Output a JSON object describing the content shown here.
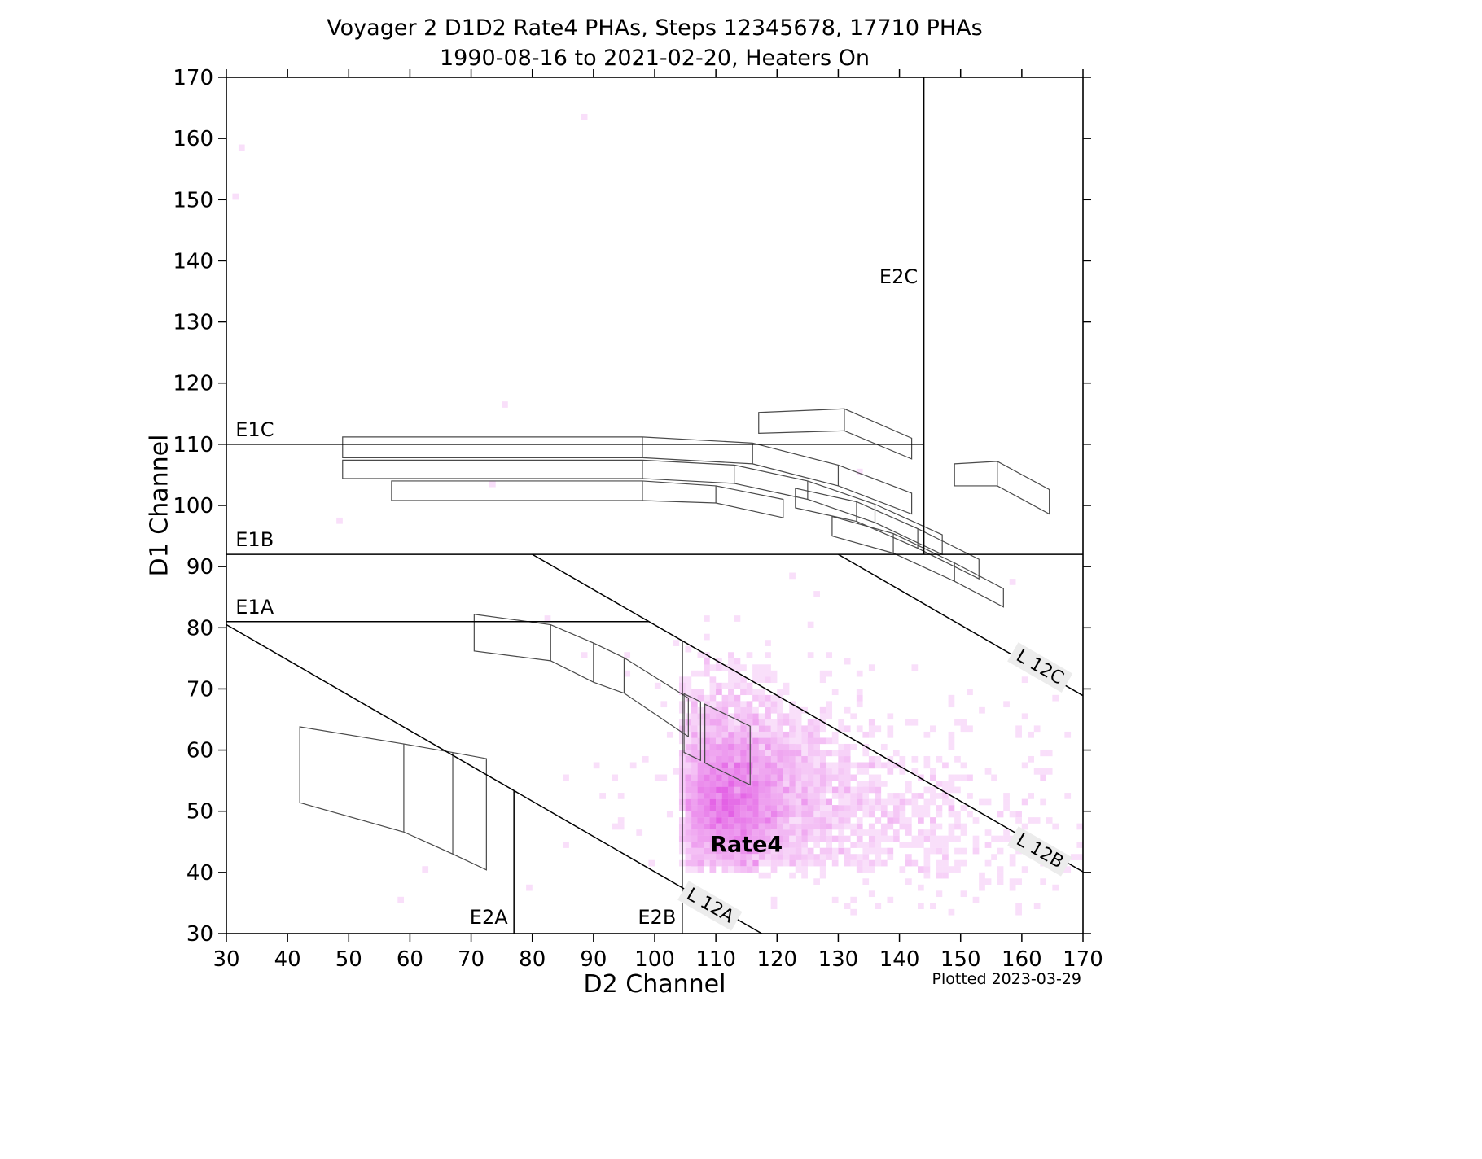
{
  "title": {
    "line1": "Voyager 2 D1D2 Rate4 PHAs, Steps 12345678, 17710 PHAs",
    "line2": "1990-08-16 to 2021-02-20, Heaters On"
  },
  "footer": {
    "plotted": "Plotted 2023-03-29"
  },
  "axes": {
    "xlabel": "D2 Channel",
    "ylabel": "D1 Channel",
    "xmin": 30,
    "xmax": 170,
    "ymin": 30,
    "ymax": 170,
    "tick_step": 10
  },
  "chart_data": {
    "type": "heatmap",
    "title": "Voyager 2 D1D2 Rate4 PHAs, Steps 12345678, 17710 PHAs",
    "subtitle": "1990-08-16 to 2021-02-20, Heaters On",
    "xlabel": "D2 Channel",
    "ylabel": "D1 Channel",
    "xlim": [
      30,
      170
    ],
    "ylim": [
      30,
      170
    ],
    "xticks": [
      30,
      40,
      50,
      60,
      70,
      80,
      90,
      100,
      110,
      120,
      130,
      140,
      150,
      160,
      170
    ],
    "yticks": [
      30,
      40,
      50,
      60,
      70,
      80,
      90,
      100,
      110,
      120,
      130,
      140,
      150,
      160,
      170
    ],
    "total_phas": 17710,
    "heat_color_max": "#e361e5",
    "heatmap": {
      "cell_size": 1,
      "seed": 42,
      "clusters": [
        {
          "n": 2600,
          "cx": 112,
          "cy": 51,
          "sx": 4.5,
          "sy": 6.0,
          "clip": {
            "xmin": 104.5,
            "ymin": 40.5
          }
        },
        {
          "n": 1400,
          "cx": 116,
          "cy": 55,
          "sx": 7.0,
          "sy": 7.0,
          "clip": {
            "xmin": 104.5,
            "ymin": 40.5
          }
        },
        {
          "n": 900,
          "cx": 122,
          "cy": 49,
          "sx": 14.0,
          "sy": 7.0,
          "clip": {
            "xmin": 104.5,
            "ymin": 40.5
          }
        },
        {
          "n": 350,
          "cx": 140,
          "cy": 48,
          "sx": 16.0,
          "sy": 7.0,
          "clip": {
            "xmin": 104.5,
            "ymin": 33
          }
        },
        {
          "n": 300,
          "cx": 111,
          "cy": 66,
          "sx": 5.0,
          "sy": 5.0,
          "clip": {
            "xmin": 104.5,
            "ymin": 40.5
          }
        },
        {
          "n": 160,
          "cx": 128,
          "cy": 58,
          "sx": 22.0,
          "sy": 12.0,
          "clip": {
            "xmin": 104.5,
            "ymin": 33
          }
        },
        {
          "n": 30,
          "cx": 98,
          "cy": 55,
          "sx": 10.0,
          "sy": 13.0,
          "clip": {
            "xmax": 104.5
          }
        }
      ],
      "outliers": [
        [
          32,
          158
        ],
        [
          31,
          150
        ],
        [
          88,
          163
        ],
        [
          75,
          116
        ],
        [
          48,
          97
        ],
        [
          88,
          75
        ],
        [
          62,
          40
        ],
        [
          73,
          103
        ],
        [
          95,
          75
        ],
        [
          90,
          57
        ],
        [
          97,
          46
        ],
        [
          85,
          44
        ],
        [
          100,
          70
        ],
        [
          102,
          62
        ],
        [
          79,
          37
        ],
        [
          58,
          35
        ]
      ]
    },
    "threshold_lines": [
      {
        "id": "E1C",
        "label": "E1C",
        "orient": "h",
        "value": 110,
        "from": 30,
        "to": 144,
        "label_pos": [
          31.5,
          110.5
        ],
        "anchor": "lb"
      },
      {
        "id": "E1B",
        "label": "E1B",
        "orient": "h",
        "value": 92,
        "from": 30,
        "to": 170,
        "label_pos": [
          31.5,
          92.5
        ],
        "anchor": "lb"
      },
      {
        "id": "E1A",
        "label": "E1A",
        "orient": "h",
        "value": 81,
        "from": 30,
        "to": 99.1,
        "label_pos": [
          31.5,
          81.5
        ],
        "anchor": "lb"
      },
      {
        "id": "E2A",
        "label": "E2A",
        "orient": "v",
        "value": 77,
        "from": 30,
        "to": 53.4,
        "label_pos": [
          76,
          30.8
        ],
        "anchor": "rb"
      },
      {
        "id": "E2B",
        "label": "E2B",
        "orient": "v",
        "value": 104.5,
        "from": 30,
        "to": 77.9,
        "label_pos": [
          103.5,
          30.8
        ],
        "anchor": "rb"
      },
      {
        "id": "E2C",
        "label": "E2C",
        "orient": "v",
        "value": 144,
        "from": 92,
        "to": 170,
        "label_pos": [
          143,
          135.5
        ],
        "anchor": "rb"
      }
    ],
    "diagonal_lines": [
      {
        "id": "L12A",
        "label": "L 12A",
        "x1": 30,
        "y1": 80.5,
        "x2": 117.5,
        "y2": 30,
        "label_pos": [
          109,
          34.5
        ],
        "rotation": 30
      },
      {
        "id": "L12B",
        "label": "L 12B",
        "x1": 80,
        "y1": 92,
        "x2": 170,
        "y2": 40.1,
        "label_pos": [
          163,
          43.5
        ],
        "rotation": 30
      },
      {
        "id": "L12C",
        "label": "L 12C",
        "x1": 130,
        "y1": 92,
        "x2": 170,
        "y2": 68.9,
        "label_pos": [
          163,
          73.5
        ],
        "rotation": 30
      }
    ],
    "bands": [
      {
        "name": "band-upper-long-1",
        "outline": [
          [
            49,
            111.2
          ],
          [
            98,
            111.2
          ],
          [
            116,
            110.2
          ],
          [
            130,
            106.6
          ],
          [
            142,
            102.0
          ],
          [
            142,
            98.6
          ],
          [
            130,
            103.2
          ],
          [
            116,
            106.8
          ],
          [
            98,
            107.8
          ],
          [
            49,
            107.8
          ]
        ],
        "dividers": [
          [
            98,
            107.8,
            111.2
          ],
          [
            116,
            106.8,
            110.2
          ],
          [
            130,
            103.2,
            106.6
          ]
        ]
      },
      {
        "name": "band-upper-long-2",
        "outline": [
          [
            49,
            107.4
          ],
          [
            98,
            107.4
          ],
          [
            113,
            106.6
          ],
          [
            125,
            104.0
          ],
          [
            136,
            100.2
          ],
          [
            147,
            95.2
          ],
          [
            147,
            92.0
          ],
          [
            136,
            97.2
          ],
          [
            125,
            101.0
          ],
          [
            113,
            103.6
          ],
          [
            98,
            104.4
          ],
          [
            49,
            104.4
          ]
        ],
        "dividers": [
          [
            98,
            104.4,
            107.4
          ],
          [
            113,
            103.6,
            106.6
          ],
          [
            125,
            101.0,
            104.0
          ],
          [
            136,
            97.2,
            100.2
          ]
        ]
      },
      {
        "name": "band-upper-long-3",
        "outline": [
          [
            57,
            104.0
          ],
          [
            98,
            104.0
          ],
          [
            110,
            103.2
          ],
          [
            121,
            101.0
          ],
          [
            121,
            98.0
          ],
          [
            110,
            100.4
          ],
          [
            98,
            100.8
          ],
          [
            57,
            100.8
          ]
        ],
        "dividers": [
          [
            98,
            100.8,
            104.0
          ],
          [
            110,
            100.4,
            103.2
          ]
        ]
      },
      {
        "name": "band-top-right",
        "outline": [
          [
            117,
            115.2
          ],
          [
            131,
            115.8
          ],
          [
            142,
            111.0
          ],
          [
            142,
            107.6
          ],
          [
            131,
            112.2
          ],
          [
            117,
            111.8
          ]
        ],
        "dividers": [
          [
            131,
            112.2,
            115.8
          ]
        ]
      },
      {
        "name": "band-right-1",
        "outline": [
          [
            123,
            102.8
          ],
          [
            133,
            100.6
          ],
          [
            143,
            96.2
          ],
          [
            153,
            91.2
          ],
          [
            153,
            88.0
          ],
          [
            143,
            93.0
          ],
          [
            133,
            97.4
          ],
          [
            123,
            99.6
          ]
        ],
        "dividers": [
          [
            133,
            97.4,
            100.6
          ],
          [
            143,
            93.0,
            96.2
          ]
        ]
      },
      {
        "name": "band-right-2",
        "outline": [
          [
            129,
            98.2
          ],
          [
            139,
            95.4
          ],
          [
            149,
            90.6
          ],
          [
            157,
            86.4
          ],
          [
            157,
            83.4
          ],
          [
            149,
            87.6
          ],
          [
            139,
            92.2
          ],
          [
            129,
            95.0
          ]
        ],
        "dividers": [
          [
            139,
            92.2,
            95.4
          ],
          [
            149,
            87.6,
            90.6
          ]
        ]
      },
      {
        "name": "band-far-right",
        "outline": [
          [
            149,
            106.8
          ],
          [
            156,
            107.2
          ],
          [
            164.5,
            102.6
          ],
          [
            164.5,
            98.6
          ],
          [
            156,
            103.2
          ],
          [
            149,
            103.2
          ]
        ],
        "dividers": [
          [
            156,
            103.2,
            107.2
          ]
        ]
      },
      {
        "name": "band-mid",
        "outline": [
          [
            70.5,
            82.2
          ],
          [
            83,
            80.5
          ],
          [
            90,
            77.5
          ],
          [
            95,
            75.1
          ],
          [
            105.5,
            68.5
          ],
          [
            105.5,
            62.2
          ],
          [
            95,
            69.3
          ],
          [
            90,
            71.1
          ],
          [
            83,
            74.6
          ],
          [
            70.5,
            76.2
          ]
        ],
        "dividers": [
          [
            83,
            74.6,
            80.5
          ],
          [
            90,
            71.1,
            77.5
          ],
          [
            95,
            69.3,
            75.1
          ]
        ]
      },
      {
        "name": "band-lower-left",
        "outline": [
          [
            42,
            63.8
          ],
          [
            59,
            61.0
          ],
          [
            67,
            59.6
          ],
          [
            72.5,
            58.6
          ],
          [
            72.5,
            40.4
          ],
          [
            67,
            43.0
          ],
          [
            59,
            46.6
          ],
          [
            42,
            51.4
          ]
        ],
        "dividers": [
          [
            59,
            46.6,
            61.0
          ],
          [
            67,
            43.0,
            59.6
          ]
        ]
      },
      {
        "name": "strip-small",
        "outline": [
          [
            104.8,
            69.2
          ],
          [
            107.5,
            67.9
          ],
          [
            107.5,
            58.3
          ],
          [
            104.8,
            59.6
          ]
        ],
        "dividers": []
      },
      {
        "name": "parallelogram-small",
        "outline": [
          [
            108.2,
            67.5
          ],
          [
            115.6,
            63.9
          ],
          [
            115.6,
            54.3
          ],
          [
            108.2,
            57.9
          ]
        ],
        "dividers": []
      }
    ],
    "annotations": [
      {
        "text": "Rate4",
        "pos": [
          115,
          44.5
        ],
        "bold": true
      }
    ]
  }
}
